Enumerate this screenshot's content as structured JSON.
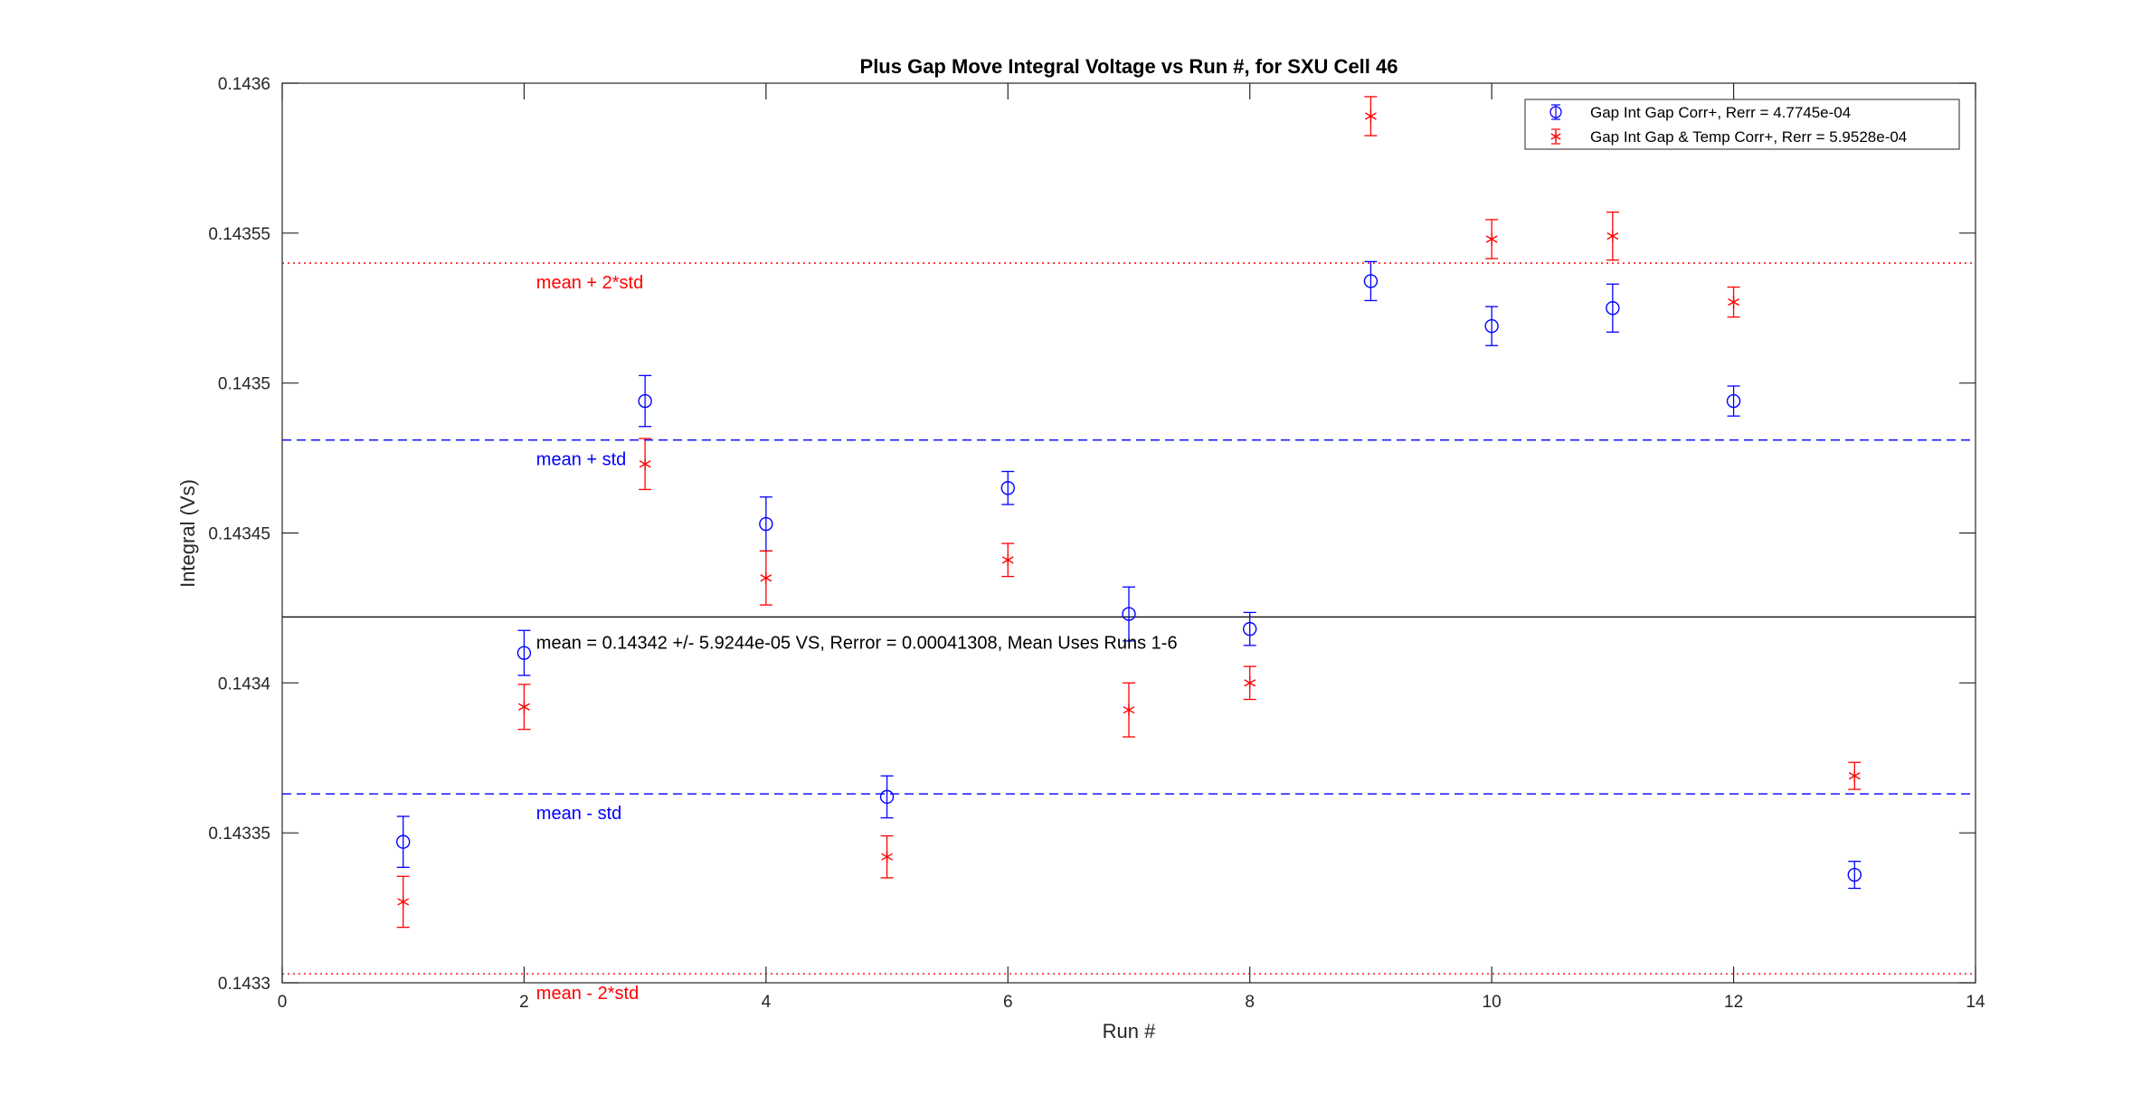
{
  "chart_data": {
    "type": "scatter",
    "title": "Plus Gap Move Integral Voltage vs Run #, for SXU Cell 46",
    "xlabel": "Run #",
    "ylabel": "Integral (Vs)",
    "xlim": [
      0,
      14
    ],
    "ylim": [
      0.1433,
      0.1436
    ],
    "xticks": [
      0,
      2,
      4,
      6,
      8,
      10,
      12,
      14
    ],
    "xtick_labels": [
      "0",
      "2",
      "4",
      "6",
      "8",
      "10",
      "12",
      "14"
    ],
    "yticks": [
      0.1433,
      0.14335,
      0.1434,
      0.14345,
      0.1435,
      0.14355,
      0.1436
    ],
    "ytick_labels": [
      "0.1433",
      "0.14335",
      "0.1434",
      "0.14345",
      "0.1435",
      "0.14355",
      "0.1436"
    ],
    "legend_position": "top-right",
    "series": [
      {
        "name": "Gap Int Gap Corr+, Rerr = 4.7745e-04",
        "marker": "circle",
        "color": "#0000ff",
        "x": [
          1,
          2,
          3,
          4,
          5,
          6,
          7,
          8,
          9,
          10,
          11,
          12,
          13
        ],
        "y": [
          0.143347,
          0.14341,
          0.143494,
          0.143453,
          0.143362,
          0.143465,
          0.143423,
          0.143418,
          0.143534,
          0.143519,
          0.143525,
          0.143494,
          0.143336
        ],
        "err": [
          8.5e-06,
          7.5e-06,
          8.5e-06,
          9e-06,
          7e-06,
          5.5e-06,
          9e-06,
          5.5e-06,
          6.5e-06,
          6.5e-06,
          8e-06,
          5e-06,
          4.5e-06
        ]
      },
      {
        "name": "Gap Int Gap & Temp  Corr+, Rerr = 5.9528e-04",
        "marker": "asterisk",
        "color": "#ff0000",
        "x": [
          1,
          2,
          3,
          4,
          5,
          6,
          7,
          8,
          9,
          10,
          11,
          12,
          13
        ],
        "y": [
          0.143327,
          0.143392,
          0.143473,
          0.143435,
          0.143342,
          0.143441,
          0.143391,
          0.1434,
          0.143589,
          0.143548,
          0.143549,
          0.143527,
          0.143369
        ],
        "err": [
          8.5e-06,
          7.5e-06,
          8.5e-06,
          9e-06,
          7e-06,
          5.5e-06,
          9e-06,
          5.5e-06,
          6.5e-06,
          6.5e-06,
          8e-06,
          5e-06,
          4.5e-06
        ]
      }
    ],
    "reference_lines": [
      {
        "label": "mean + 2*std",
        "y": 0.14354,
        "color": "#ff0000",
        "style": "dotted"
      },
      {
        "label": "mean + std",
        "y": 0.143481,
        "color": "#0000ff",
        "style": "dashed"
      },
      {
        "label": "",
        "y": 0.143422,
        "color": "#000000",
        "style": "solid"
      },
      {
        "label": "mean - std",
        "y": 0.143363,
        "color": "#0000ff",
        "style": "dashed"
      },
      {
        "label": "mean - 2*std",
        "y": 0.143303,
        "color": "#ff0000",
        "style": "dotted"
      }
    ],
    "reference_label_x": 2.1,
    "annotation": {
      "text": "mean = 0.14342 +/- 5.9244e-05 VS, Rerror = 0.00041308, Mean Uses Runs 1-6",
      "x": 2.1,
      "y": 0.143415
    }
  }
}
